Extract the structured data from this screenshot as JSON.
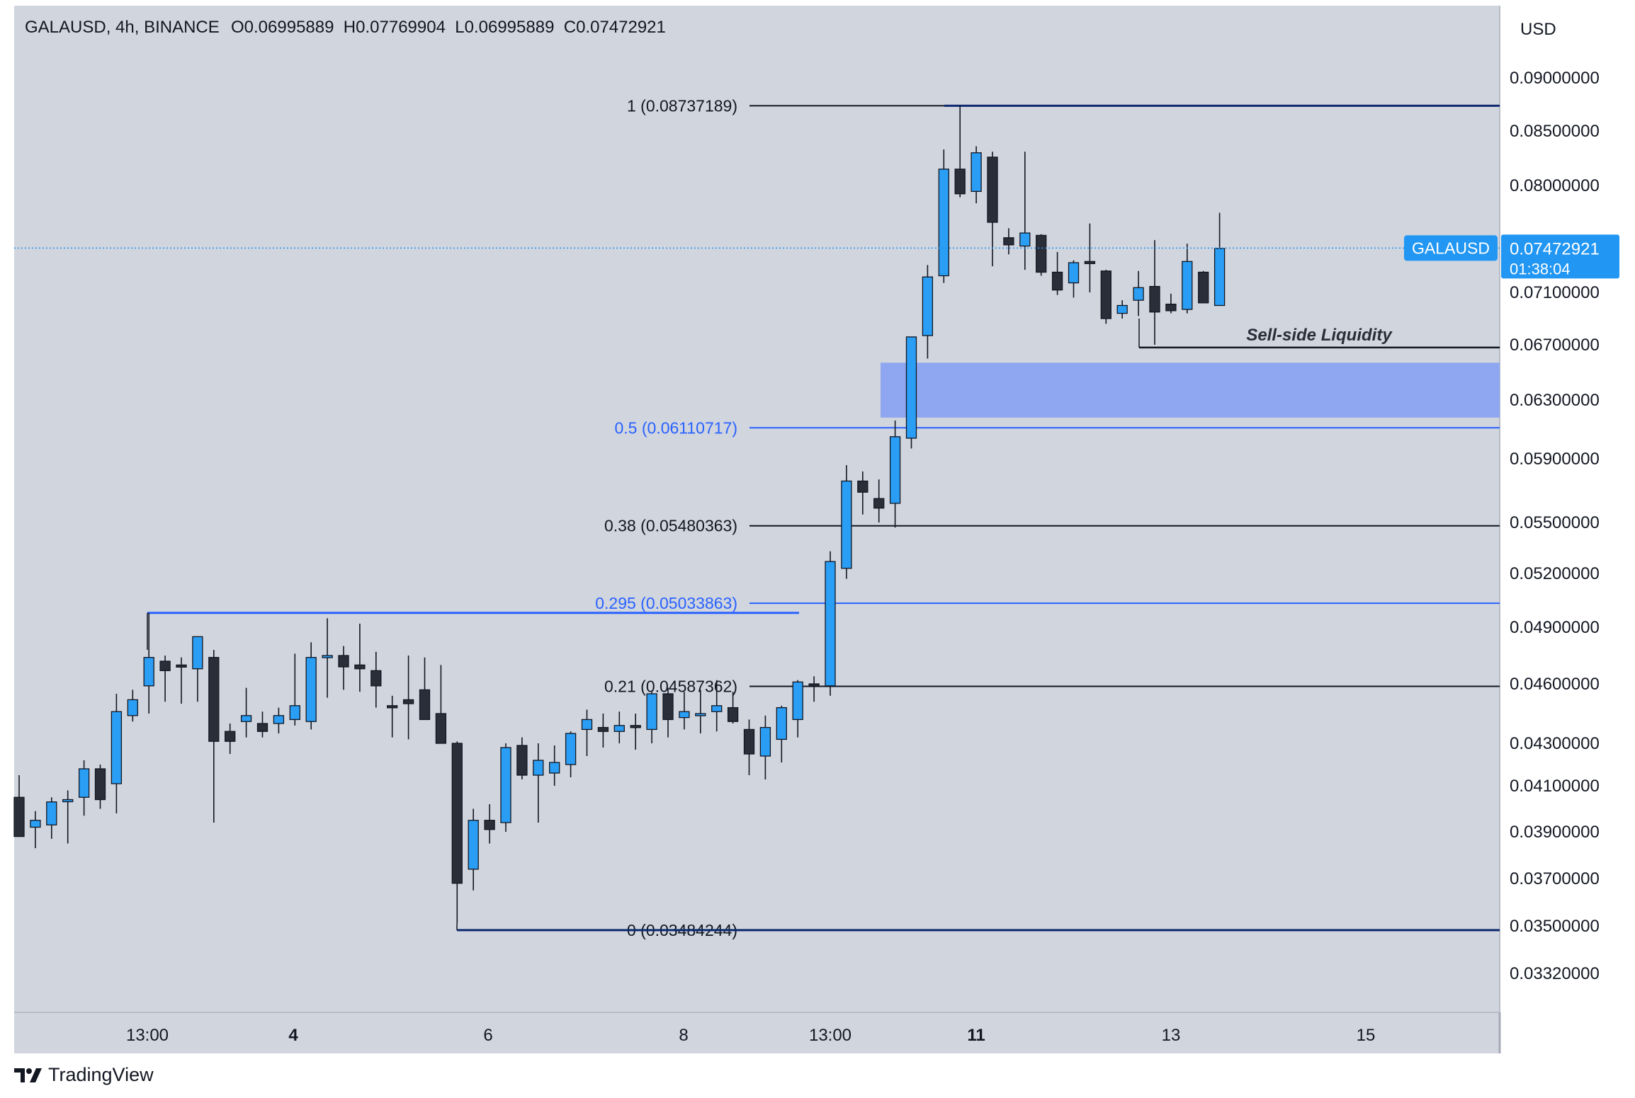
{
  "header": {
    "symbol_info": "GALAUSD, 4h, BINANCE",
    "ohlc": "O0.06995889  H0.07769904  L0.06995889  C0.07472921"
  },
  "currency_button": "USD",
  "current_price": {
    "symbol_label": "GALAUSD",
    "price": "0.07472921",
    "countdown": "01:38:04",
    "value": 0.07472921
  },
  "brand": {
    "name": "TradingView"
  },
  "colors": {
    "chart_bg": "#d1d5de",
    "bull_candle": "#2a9df4",
    "bear_candle": "#2a2e39",
    "fib_blue": "#2962ff",
    "fib_black": "#131722",
    "zone": "#8ea7f0",
    "price_label_bg": "#2196f3"
  },
  "chart_data": {
    "type": "candlestick",
    "title": "GALAUSD, 4h, BINANCE",
    "y_axis_ticks": [
      "0.09000000",
      "0.08500000",
      "0.08000000",
      "0.07100000",
      "0.06700000",
      "0.06300000",
      "0.05900000",
      "0.05500000",
      "0.05200000",
      "0.04900000",
      "0.04600000",
      "0.04300000",
      "0.04100000",
      "0.03900000",
      "0.03700000",
      "0.03500000",
      "0.03320000"
    ],
    "x_axis_ticks": [
      {
        "label": "13:00",
        "bold": false
      },
      {
        "label": "4",
        "bold": true
      },
      {
        "label": "6",
        "bold": false
      },
      {
        "label": "8",
        "bold": false
      },
      {
        "label": "13:00",
        "bold": false
      },
      {
        "label": "11",
        "bold": true
      },
      {
        "label": "13",
        "bold": false
      },
      {
        "label": "15",
        "bold": false
      }
    ],
    "fib_levels": [
      {
        "label": "1 (0.08737189)",
        "value": 0.08737189,
        "color": "black"
      },
      {
        "label": "0.5 (0.06110717)",
        "value": 0.06110717,
        "color": "blue"
      },
      {
        "label": "0.38 (0.05480363)",
        "value": 0.05480363,
        "color": "black"
      },
      {
        "label": "0.295 (0.05033863)",
        "value": 0.05033863,
        "color": "blue"
      },
      {
        "label": "0.21 (0.04587362)",
        "value": 0.04587362,
        "color": "black"
      },
      {
        "label": "0 (0.03484244)",
        "value": 0.03484244,
        "color": "black"
      }
    ],
    "annotations": [
      {
        "text": "Sell-side Liquidity",
        "value": 0.0668
      }
    ],
    "zones": [
      {
        "name": "fair-value-gap",
        "top": 0.0657,
        "bottom": 0.0618
      }
    ],
    "candles": [
      {
        "o": 0.0405,
        "h": 0.0415,
        "l": 0.0388,
        "c": 0.0388
      },
      {
        "o": 0.0392,
        "h": 0.0399,
        "l": 0.0383,
        "c": 0.0395
      },
      {
        "o": 0.0393,
        "h": 0.0405,
        "l": 0.0387,
        "c": 0.0403
      },
      {
        "o": 0.0404,
        "h": 0.0408,
        "l": 0.0385,
        "c": 0.0404
      },
      {
        "o": 0.0405,
        "h": 0.0422,
        "l": 0.0397,
        "c": 0.0418
      },
      {
        "o": 0.0418,
        "h": 0.042,
        "l": 0.04,
        "c": 0.0404
      },
      {
        "o": 0.0411,
        "h": 0.0455,
        "l": 0.0398,
        "c": 0.0446
      },
      {
        "o": 0.0444,
        "h": 0.0457,
        "l": 0.0441,
        "c": 0.0452
      },
      {
        "o": 0.0459,
        "h": 0.0498,
        "l": 0.0445,
        "c": 0.0474
      },
      {
        "o": 0.0472,
        "h": 0.0475,
        "l": 0.0451,
        "c": 0.0467
      },
      {
        "o": 0.047,
        "h": 0.0474,
        "l": 0.045,
        "c": 0.0469
      },
      {
        "o": 0.0468,
        "h": 0.0485,
        "l": 0.0451,
        "c": 0.0485
      },
      {
        "o": 0.0474,
        "h": 0.0478,
        "l": 0.0394,
        "c": 0.0431
      },
      {
        "o": 0.0436,
        "h": 0.044,
        "l": 0.0425,
        "c": 0.0431
      },
      {
        "o": 0.0441,
        "h": 0.0458,
        "l": 0.0433,
        "c": 0.0444
      },
      {
        "o": 0.044,
        "h": 0.0446,
        "l": 0.0433,
        "c": 0.0436
      },
      {
        "o": 0.044,
        "h": 0.0448,
        "l": 0.0435,
        "c": 0.0444
      },
      {
        "o": 0.0442,
        "h": 0.0476,
        "l": 0.0439,
        "c": 0.0449
      },
      {
        "o": 0.0441,
        "h": 0.0482,
        "l": 0.0437,
        "c": 0.0474
      },
      {
        "o": 0.0474,
        "h": 0.0495,
        "l": 0.0453,
        "c": 0.0475
      },
      {
        "o": 0.0475,
        "h": 0.048,
        "l": 0.0457,
        "c": 0.0469
      },
      {
        "o": 0.047,
        "h": 0.0492,
        "l": 0.0456,
        "c": 0.0468
      },
      {
        "o": 0.0467,
        "h": 0.0477,
        "l": 0.0448,
        "c": 0.0459
      },
      {
        "o": 0.0449,
        "h": 0.0454,
        "l": 0.0433,
        "c": 0.0448
      },
      {
        "o": 0.0452,
        "h": 0.0475,
        "l": 0.0432,
        "c": 0.045
      },
      {
        "o": 0.0457,
        "h": 0.0474,
        "l": 0.0445,
        "c": 0.0442
      },
      {
        "o": 0.0445,
        "h": 0.047,
        "l": 0.0435,
        "c": 0.043
      },
      {
        "o": 0.043,
        "h": 0.0431,
        "l": 0.0351,
        "c": 0.0368
      },
      {
        "o": 0.0374,
        "h": 0.04,
        "l": 0.0365,
        "c": 0.0395
      },
      {
        "o": 0.0395,
        "h": 0.0402,
        "l": 0.0385,
        "c": 0.0391
      },
      {
        "o": 0.0394,
        "h": 0.043,
        "l": 0.039,
        "c": 0.0428
      },
      {
        "o": 0.0429,
        "h": 0.0433,
        "l": 0.0413,
        "c": 0.0415
      },
      {
        "o": 0.0415,
        "h": 0.043,
        "l": 0.0394,
        "c": 0.0422
      },
      {
        "o": 0.0416,
        "h": 0.0429,
        "l": 0.041,
        "c": 0.0421
      },
      {
        "o": 0.042,
        "h": 0.0436,
        "l": 0.0414,
        "c": 0.0435
      },
      {
        "o": 0.0437,
        "h": 0.0447,
        "l": 0.0424,
        "c": 0.0442
      },
      {
        "o": 0.0438,
        "h": 0.0445,
        "l": 0.0428,
        "c": 0.0436
      },
      {
        "o": 0.0436,
        "h": 0.0446,
        "l": 0.043,
        "c": 0.0439
      },
      {
        "o": 0.0439,
        "h": 0.0445,
        "l": 0.0427,
        "c": 0.0438
      },
      {
        "o": 0.0437,
        "h": 0.0456,
        "l": 0.043,
        "c": 0.0455
      },
      {
        "o": 0.0455,
        "h": 0.0458,
        "l": 0.0433,
        "c": 0.0442
      },
      {
        "o": 0.0443,
        "h": 0.0456,
        "l": 0.0437,
        "c": 0.0446
      },
      {
        "o": 0.0444,
        "h": 0.0457,
        "l": 0.0435,
        "c": 0.0445
      },
      {
        "o": 0.0446,
        "h": 0.0462,
        "l": 0.0436,
        "c": 0.0449
      },
      {
        "o": 0.0448,
        "h": 0.0456,
        "l": 0.044,
        "c": 0.0441
      },
      {
        "o": 0.0437,
        "h": 0.0442,
        "l": 0.0415,
        "c": 0.0425
      },
      {
        "o": 0.0424,
        "h": 0.0444,
        "l": 0.0413,
        "c": 0.0438
      },
      {
        "o": 0.0432,
        "h": 0.0449,
        "l": 0.0421,
        "c": 0.0448
      },
      {
        "o": 0.0442,
        "h": 0.0462,
        "l": 0.0433,
        "c": 0.0461
      },
      {
        "o": 0.046,
        "h": 0.0464,
        "l": 0.0451,
        "c": 0.0459
      },
      {
        "o": 0.0459,
        "h": 0.0533,
        "l": 0.0454,
        "c": 0.0527
      },
      {
        "o": 0.0523,
        "h": 0.0586,
        "l": 0.0517,
        "c": 0.0576
      },
      {
        "o": 0.0576,
        "h": 0.0582,
        "l": 0.0555,
        "c": 0.0569
      },
      {
        "o": 0.0565,
        "h": 0.0577,
        "l": 0.055,
        "c": 0.0559
      },
      {
        "o": 0.0562,
        "h": 0.0616,
        "l": 0.0547,
        "c": 0.0605
      },
      {
        "o": 0.0604,
        "h": 0.0676,
        "l": 0.0597,
        "c": 0.0676
      },
      {
        "o": 0.0677,
        "h": 0.0733,
        "l": 0.066,
        "c": 0.0723
      },
      {
        "o": 0.0724,
        "h": 0.0833,
        "l": 0.0718,
        "c": 0.0815
      },
      {
        "o": 0.0815,
        "h": 0.0874,
        "l": 0.079,
        "c": 0.0793
      },
      {
        "o": 0.0795,
        "h": 0.0836,
        "l": 0.0785,
        "c": 0.083
      },
      {
        "o": 0.0826,
        "h": 0.0831,
        "l": 0.0732,
        "c": 0.0769
      },
      {
        "o": 0.0756,
        "h": 0.0764,
        "l": 0.0742,
        "c": 0.075
      },
      {
        "o": 0.0749,
        "h": 0.0831,
        "l": 0.0729,
        "c": 0.076
      },
      {
        "o": 0.0758,
        "h": 0.0759,
        "l": 0.0724,
        "c": 0.0727
      },
      {
        "o": 0.0727,
        "h": 0.0744,
        "l": 0.0708,
        "c": 0.0712
      },
      {
        "o": 0.0718,
        "h": 0.0737,
        "l": 0.0706,
        "c": 0.0735
      },
      {
        "o": 0.0736,
        "h": 0.0768,
        "l": 0.071,
        "c": 0.0735
      },
      {
        "o": 0.0728,
        "h": 0.0729,
        "l": 0.0686,
        "c": 0.069
      },
      {
        "o": 0.0694,
        "h": 0.0704,
        "l": 0.069,
        "c": 0.07
      },
      {
        "o": 0.0704,
        "h": 0.0728,
        "l": 0.0692,
        "c": 0.0714
      },
      {
        "o": 0.0715,
        "h": 0.0754,
        "l": 0.067,
        "c": 0.0695
      },
      {
        "o": 0.0701,
        "h": 0.0709,
        "l": 0.0694,
        "c": 0.0696
      },
      {
        "o": 0.0697,
        "h": 0.0751,
        "l": 0.0694,
        "c": 0.0736
      },
      {
        "o": 0.0727,
        "h": 0.0728,
        "l": 0.0702,
        "c": 0.0702
      },
      {
        "o": 0.07,
        "h": 0.0777,
        "l": 0.07,
        "c": 0.0747
      }
    ]
  }
}
